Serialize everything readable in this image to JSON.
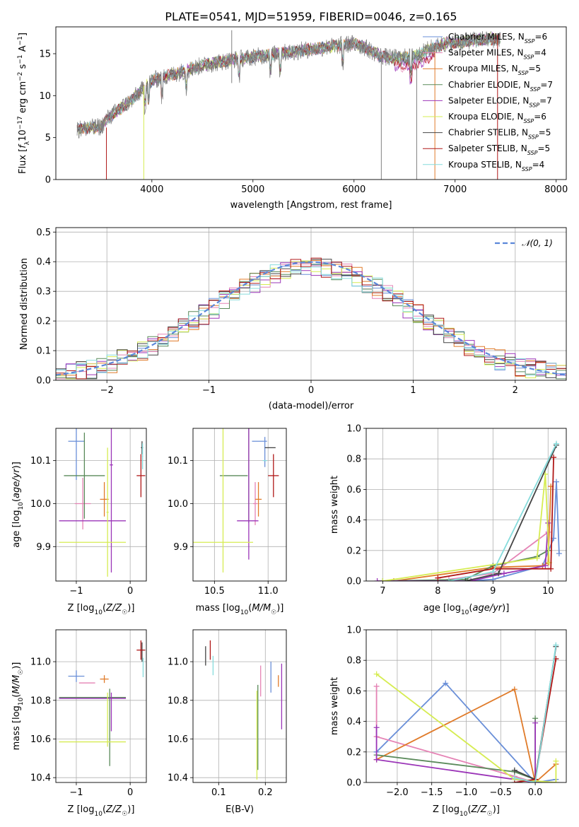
{
  "figure_title": "PLATE=0541, MJD=51959, FIBERID=0046, z=0.165",
  "colors": {
    "Chabrier MILES": "#6a8fd8",
    "Salpeter MILES": "#e583b5",
    "Kroupa MILES": "#e07b2a",
    "Chabrier ELODIE": "#5a8a5a",
    "Salpeter ELODIE": "#9b35b8",
    "Kroupa ELODIE": "#d6ec52",
    "Chabrier STELIB": "#444444",
    "Salpeter STELIB": "#b01818",
    "Kroupa STELIB": "#86dcdc",
    "data": "#808080"
  },
  "chart_data": [
    {
      "id": "spectrum",
      "type": "line",
      "title": "PLATE=0541, MJD=51959, FIBERID=0046, z=0.165",
      "xlabel": "wavelength [Angstrom, rest frame]",
      "ylabel": "Flux [f_λ 10^-17 erg cm^-2 s^-1 A^-1]",
      "xlim": [
        3050,
        8100
      ],
      "ylim": [
        0,
        18.2
      ],
      "xticks": [
        4000,
        5000,
        6000,
        7000,
        8000
      ],
      "yticks": [
        0,
        5,
        10,
        15
      ],
      "grid": false,
      "legend_position": "top-right",
      "continuum": {
        "x": [
          3260,
          3500,
          3550,
          3800,
          4000,
          4200,
          4500,
          4800,
          5000,
          5300,
          5500,
          5800,
          6000,
          6100,
          6250,
          6350,
          6550,
          6650,
          6750,
          6900,
          7200,
          7450
        ],
        "y": [
          6.0,
          6.3,
          7.2,
          9.5,
          11.8,
          12.5,
          13.6,
          14.3,
          14.6,
          15.1,
          15.4,
          15.9,
          16.2,
          15.8,
          14.8,
          14.5,
          14.6,
          14.9,
          15.6,
          16.2,
          16.6,
          16.8
        ]
      },
      "series": [
        {
          "name": "Chabrier MILES",
          "nssp": "6"
        },
        {
          "name": "Salpeter MILES",
          "nssp": "4"
        },
        {
          "name": "Kroupa MILES",
          "nssp": "5"
        },
        {
          "name": "Chabrier ELODIE",
          "nssp": "7"
        },
        {
          "name": "Salpeter ELODIE",
          "nssp": "7"
        },
        {
          "name": "Kroupa ELODIE",
          "nssp": "6"
        },
        {
          "name": "Chabrier STELIB",
          "nssp": "5"
        },
        {
          "name": "Salpeter STELIB",
          "nssp": "5"
        },
        {
          "name": "Kroupa STELIB",
          "nssp": "4"
        }
      ]
    },
    {
      "id": "residuals",
      "type": "histogram",
      "xlabel": "(data-model)/error",
      "ylabel": "Normed distribution",
      "xlim": [
        -2.5,
        2.5
      ],
      "ylim": [
        0,
        0.515
      ],
      "xticks": [
        -2,
        -1,
        0,
        1,
        2
      ],
      "yticks": [
        0.0,
        0.1,
        0.2,
        0.3,
        0.4,
        0.5
      ],
      "grid": true,
      "legend_position": "top-right",
      "reference_curve": "𝒩(0, 1)",
      "bin_width": 0.1
    },
    {
      "id": "age_vs_Z",
      "type": "errorbar",
      "xlabel": "Z [log10(Z/Z☉)]",
      "ylabel": "age [log10(age/yr)]",
      "xlim": [
        -1.38,
        0.3
      ],
      "ylim": [
        9.82,
        10.175
      ],
      "xticks": [
        -1,
        0
      ],
      "yticks": [
        9.9,
        10.0,
        10.1
      ],
      "grid": true,
      "points": [
        {
          "model": "Chabrier MILES",
          "x": -1.0,
          "xerr": 0.15,
          "y": 10.145,
          "yerr": 0.09
        },
        {
          "model": "Salpeter MILES",
          "x": -0.88,
          "xerr": 0.15,
          "y": 10.0,
          "yerr": 0.06
        },
        {
          "model": "Kroupa MILES",
          "x": -0.48,
          "xerr": 0.08,
          "y": 10.01,
          "yerr": 0.04
        },
        {
          "model": "Chabrier ELODIE",
          "x": -0.85,
          "xerr": 0.38,
          "y": 10.065,
          "yerr": 0.1
        },
        {
          "model": "Salpeter ELODIE",
          "x": -0.35,
          "xerr": 0.03,
          "y": 10.09,
          "yerr": 0.25
        },
        {
          "model": "Salpeter ELODIE",
          "x": -0.7,
          "xerr": 0.62,
          "y": 9.96,
          "yerr": 0.0
        },
        {
          "model": "Kroupa ELODIE",
          "x": -0.42,
          "xerr": 0.02,
          "y": 9.98,
          "yerr": 0.15
        },
        {
          "model": "Kroupa ELODIE",
          "x": -0.7,
          "xerr": 0.62,
          "y": 9.91,
          "yerr": 0.0
        },
        {
          "model": "Chabrier STELIB",
          "x": 0.22,
          "xerr": 0.02,
          "y": 10.13,
          "yerr": 0.015
        },
        {
          "model": "Salpeter STELIB",
          "x": 0.2,
          "xerr": 0.08,
          "y": 10.065,
          "yerr": 0.05
        },
        {
          "model": "Kroupa STELIB",
          "x": 0.23,
          "xerr": 0.01,
          "y": 10.11,
          "yerr": 0.03
        }
      ]
    },
    {
      "id": "age_vs_mass",
      "type": "errorbar",
      "xlabel": "mass [log10(M/M☉)]",
      "ylabel": "",
      "xlim": [
        10.3,
        11.17
      ],
      "ylim": [
        9.82,
        10.175
      ],
      "xticks": [
        10.5,
        11.0
      ],
      "yticks": [
        9.9,
        10.0,
        10.1
      ],
      "grid": true,
      "points": [
        {
          "model": "Chabrier MILES",
          "x": 10.92,
          "xerr": 0.07,
          "y": 10.145,
          "yerr": 0.0
        },
        {
          "model": "Chabrier MILES",
          "x": 10.97,
          "xerr": 0.0,
          "y": 10.12,
          "yerr": 0.035
        },
        {
          "model": "Salpeter MILES",
          "x": 10.88,
          "xerr": 0.02,
          "y": 10.0,
          "yerr": 0.05
        },
        {
          "model": "Kroupa MILES",
          "x": 10.91,
          "xerr": 0.03,
          "y": 10.01,
          "yerr": 0.04
        },
        {
          "model": "Chabrier ELODIE",
          "x": 10.82,
          "xerr": 0.0,
          "y": 10.065,
          "yerr": 0.11
        },
        {
          "model": "Chabrier ELODIE",
          "x": 10.68,
          "xerr": 0.13,
          "y": 10.065,
          "yerr": 0.0
        },
        {
          "model": "Salpeter ELODIE",
          "x": 10.82,
          "xerr": 0.0,
          "y": 10.05,
          "yerr": 0.18
        },
        {
          "model": "Salpeter ELODIE",
          "x": 10.81,
          "xerr": 0.1,
          "y": 9.96,
          "yerr": 0.0
        },
        {
          "model": "Kroupa ELODIE",
          "x": 10.58,
          "xerr": 0.0,
          "y": 10.04,
          "yerr": 0.2
        },
        {
          "model": "Kroupa ELODIE",
          "x": 10.58,
          "xerr": 0.28,
          "y": 9.91,
          "yerr": 0.0
        },
        {
          "model": "Chabrier STELIB",
          "x": 11.02,
          "xerr": 0.05,
          "y": 10.13,
          "yerr": 0.0
        },
        {
          "model": "Salpeter STELIB",
          "x": 11.05,
          "xerr": 0.05,
          "y": 10.065,
          "yerr": 0.05
        },
        {
          "model": "Kroupa STELIB",
          "x": 10.97,
          "xerr": 0.02,
          "y": 10.1,
          "yerr": 0.0
        }
      ]
    },
    {
      "id": "mass_weight_vs_age",
      "type": "line",
      "xlabel": "age [log10(age/yr)]",
      "ylabel": "mass weight",
      "xlim": [
        6.7,
        10.33
      ],
      "ylim": [
        0,
        1.0
      ],
      "xticks": [
        7,
        8,
        9,
        10
      ],
      "yticks": [
        0.0,
        0.2,
        0.4,
        0.6,
        0.8,
        1.0
      ],
      "grid": true,
      "series": [
        {
          "name": "Chabrier MILES",
          "x": [
            7.0,
            8.5,
            9.0,
            9.9,
            10.1,
            10.15,
            10.2
          ],
          "y": [
            0.0,
            0.0,
            0.01,
            0.1,
            0.28,
            0.65,
            0.18
          ]
        },
        {
          "name": "Salpeter MILES",
          "x": [
            8.2,
            9.0,
            10.0
          ],
          "y": [
            0.01,
            0.05,
            0.32
          ]
        },
        {
          "name": "Kroupa MILES",
          "x": [
            7.2,
            9.0,
            9.9,
            10.0,
            10.05
          ],
          "y": [
            0.0,
            0.09,
            0.1,
            0.12,
            0.62
          ]
        },
        {
          "name": "Chabrier ELODIE",
          "x": [
            7.0,
            8.5,
            9.0,
            9.8,
            10.0
          ],
          "y": [
            0.0,
            0.01,
            0.1,
            0.16,
            0.2
          ]
        },
        {
          "name": "Salpeter ELODIE",
          "x": [
            6.9,
            8.6,
            9.2,
            9.95,
            10.0
          ],
          "y": [
            0.0,
            0.0,
            0.05,
            0.1,
            0.38
          ]
        },
        {
          "name": "Kroupa ELODIE",
          "x": [
            7.0,
            9.8,
            9.95,
            10.02
          ],
          "y": [
            0.0,
            0.15,
            0.7,
            0.12
          ]
        },
        {
          "name": "Chabrier STELIB",
          "x": [
            8.5,
            9.1,
            10.15
          ],
          "y": [
            0.0,
            0.05,
            0.89
          ]
        },
        {
          "name": "Salpeter STELIB",
          "x": [
            8.0,
            9.0,
            10.05,
            10.1
          ],
          "y": [
            0.02,
            0.08,
            0.08,
            0.81
          ]
        },
        {
          "name": "Kroupa STELIB",
          "x": [
            8.2,
            9.0,
            10.15
          ],
          "y": [
            0.0,
            0.06,
            0.9
          ]
        }
      ]
    },
    {
      "id": "mass_vs_Z",
      "type": "errorbar",
      "xlabel": "Z [log10(Z/Z☉)]",
      "ylabel": "mass [log10(M/M☉)]",
      "xlim": [
        -1.38,
        0.3
      ],
      "ylim": [
        10.375,
        11.165
      ],
      "xticks": [
        -1,
        0
      ],
      "yticks": [
        10.4,
        10.6,
        10.8,
        11.0
      ],
      "grid": true,
      "points": [
        {
          "model": "Chabrier MILES",
          "x": -1.0,
          "xerr": 0.15,
          "y": 10.925,
          "yerr": 0.03
        },
        {
          "model": "Salpeter MILES",
          "x": -0.8,
          "xerr": 0.15,
          "y": 10.89,
          "yerr": 0.0
        },
        {
          "model": "Kroupa MILES",
          "x": -0.48,
          "xerr": 0.08,
          "y": 10.91,
          "yerr": 0.02
        },
        {
          "model": "Chabrier ELODIE",
          "x": -0.38,
          "xerr": 0.0,
          "y": 10.66,
          "yerr": 0.2
        },
        {
          "model": "Chabrier ELODIE",
          "x": -0.7,
          "xerr": 0.62,
          "y": 10.815,
          "yerr": 0.0
        },
        {
          "model": "Salpeter ELODIE",
          "x": -0.35,
          "xerr": 0.0,
          "y": 10.74,
          "yerr": 0.1
        },
        {
          "model": "Salpeter ELODIE",
          "x": -0.7,
          "xerr": 0.62,
          "y": 10.81,
          "yerr": 0.0
        },
        {
          "model": "Kroupa ELODIE",
          "x": -0.42,
          "xerr": 0.0,
          "y": 10.7,
          "yerr": 0.14
        },
        {
          "model": "Kroupa ELODIE",
          "x": -0.7,
          "xerr": 0.62,
          "y": 10.585,
          "yerr": 0.0
        },
        {
          "model": "Chabrier STELIB",
          "x": 0.22,
          "xerr": 0.0,
          "y": 11.05,
          "yerr": 0.05
        },
        {
          "model": "Salpeter STELIB",
          "x": 0.2,
          "xerr": 0.08,
          "y": 11.06,
          "yerr": 0.05
        },
        {
          "model": "Kroupa STELIB",
          "x": 0.24,
          "xerr": 0.0,
          "y": 10.97,
          "yerr": 0.05
        }
      ]
    },
    {
      "id": "mass_vs_ebv",
      "type": "errorbar",
      "xlabel": "E(B-V)",
      "ylabel": "",
      "xlim": [
        0.045,
        0.245
      ],
      "ylim": [
        10.375,
        11.165
      ],
      "xticks": [
        0.1,
        0.2
      ],
      "yticks": [
        10.4,
        10.6,
        10.8,
        11.0
      ],
      "grid": true,
      "points": [
        {
          "model": "Chabrier MILES",
          "x": 0.212,
          "xerr": 0.0,
          "y": 10.92,
          "yerr": 0.08
        },
        {
          "model": "Salpeter MILES",
          "x": 0.19,
          "xerr": 0.0,
          "y": 10.9,
          "yerr": 0.08
        },
        {
          "model": "Kroupa MILES",
          "x": 0.228,
          "xerr": 0.0,
          "y": 10.9,
          "yerr": 0.03
        },
        {
          "model": "Chabrier ELODIE",
          "x": 0.184,
          "xerr": 0.0,
          "y": 10.66,
          "yerr": 0.22
        },
        {
          "model": "Salpeter ELODIE",
          "x": 0.235,
          "xerr": 0.0,
          "y": 10.82,
          "yerr": 0.17
        },
        {
          "model": "Kroupa ELODIE",
          "x": 0.182,
          "xerr": 0.0,
          "y": 10.62,
          "yerr": 0.23
        },
        {
          "model": "Chabrier STELIB",
          "x": 0.072,
          "xerr": 0.0,
          "y": 11.03,
          "yerr": 0.05
        },
        {
          "model": "Salpeter STELIB",
          "x": 0.082,
          "xerr": 0.0,
          "y": 11.06,
          "yerr": 0.05
        },
        {
          "model": "Kroupa STELIB",
          "x": 0.088,
          "xerr": 0.0,
          "y": 10.98,
          "yerr": 0.05
        }
      ]
    },
    {
      "id": "mass_weight_vs_Z",
      "type": "line",
      "xlabel": "Z [log10(Z/Z☉)]",
      "ylabel": "mass weight",
      "xlim": [
        -2.45,
        0.45
      ],
      "ylim": [
        0,
        1.0
      ],
      "xticks": [
        -2.0,
        -1.5,
        -1.0,
        -0.5,
        0.0
      ],
      "yticks": [
        0.0,
        0.2,
        0.4,
        0.6,
        0.8,
        1.0
      ],
      "grid": true,
      "series": [
        {
          "name": "Chabrier MILES",
          "x": [
            -2.3,
            -1.3,
            0.0,
            0.3
          ],
          "y": [
            0.2,
            0.65,
            0.0,
            0.02
          ]
        },
        {
          "name": "Salpeter MILES",
          "x": [
            -2.3,
            -2.3,
            -0.3,
            0.0
          ],
          "y": [
            0.63,
            0.3,
            0.04,
            0.0
          ]
        },
        {
          "name": "Kroupa MILES",
          "x": [
            -2.3,
            -0.3,
            0.0,
            0.3
          ],
          "y": [
            0.15,
            0.61,
            0.0,
            0.12
          ]
        },
        {
          "name": "Chabrier ELODIE",
          "x": [
            -2.3,
            -0.3,
            0.0,
            0.0
          ],
          "y": [
            0.18,
            0.07,
            0.02,
            0.42
          ]
        },
        {
          "name": "Salpeter ELODIE",
          "x": [
            -2.3,
            -2.3,
            -0.3,
            0.0,
            0.0
          ],
          "y": [
            0.36,
            0.15,
            0.02,
            0.0,
            0.39
          ]
        },
        {
          "name": "Kroupa ELODIE",
          "x": [
            -2.3,
            -0.3,
            0.3,
            0.3
          ],
          "y": [
            0.71,
            0.02,
            0.0,
            0.14
          ]
        },
        {
          "name": "Chabrier STELIB",
          "x": [
            -0.3,
            0.0,
            0.3
          ],
          "y": [
            0.08,
            0.02,
            0.89
          ]
        },
        {
          "name": "Salpeter STELIB",
          "x": [
            -0.3,
            0.0,
            0.3
          ],
          "y": [
            0.0,
            0.02,
            0.81
          ]
        },
        {
          "name": "Kroupa STELIB",
          "x": [
            -0.3,
            0.0,
            0.3
          ],
          "y": [
            0.03,
            0.0,
            0.9
          ]
        }
      ]
    }
  ]
}
